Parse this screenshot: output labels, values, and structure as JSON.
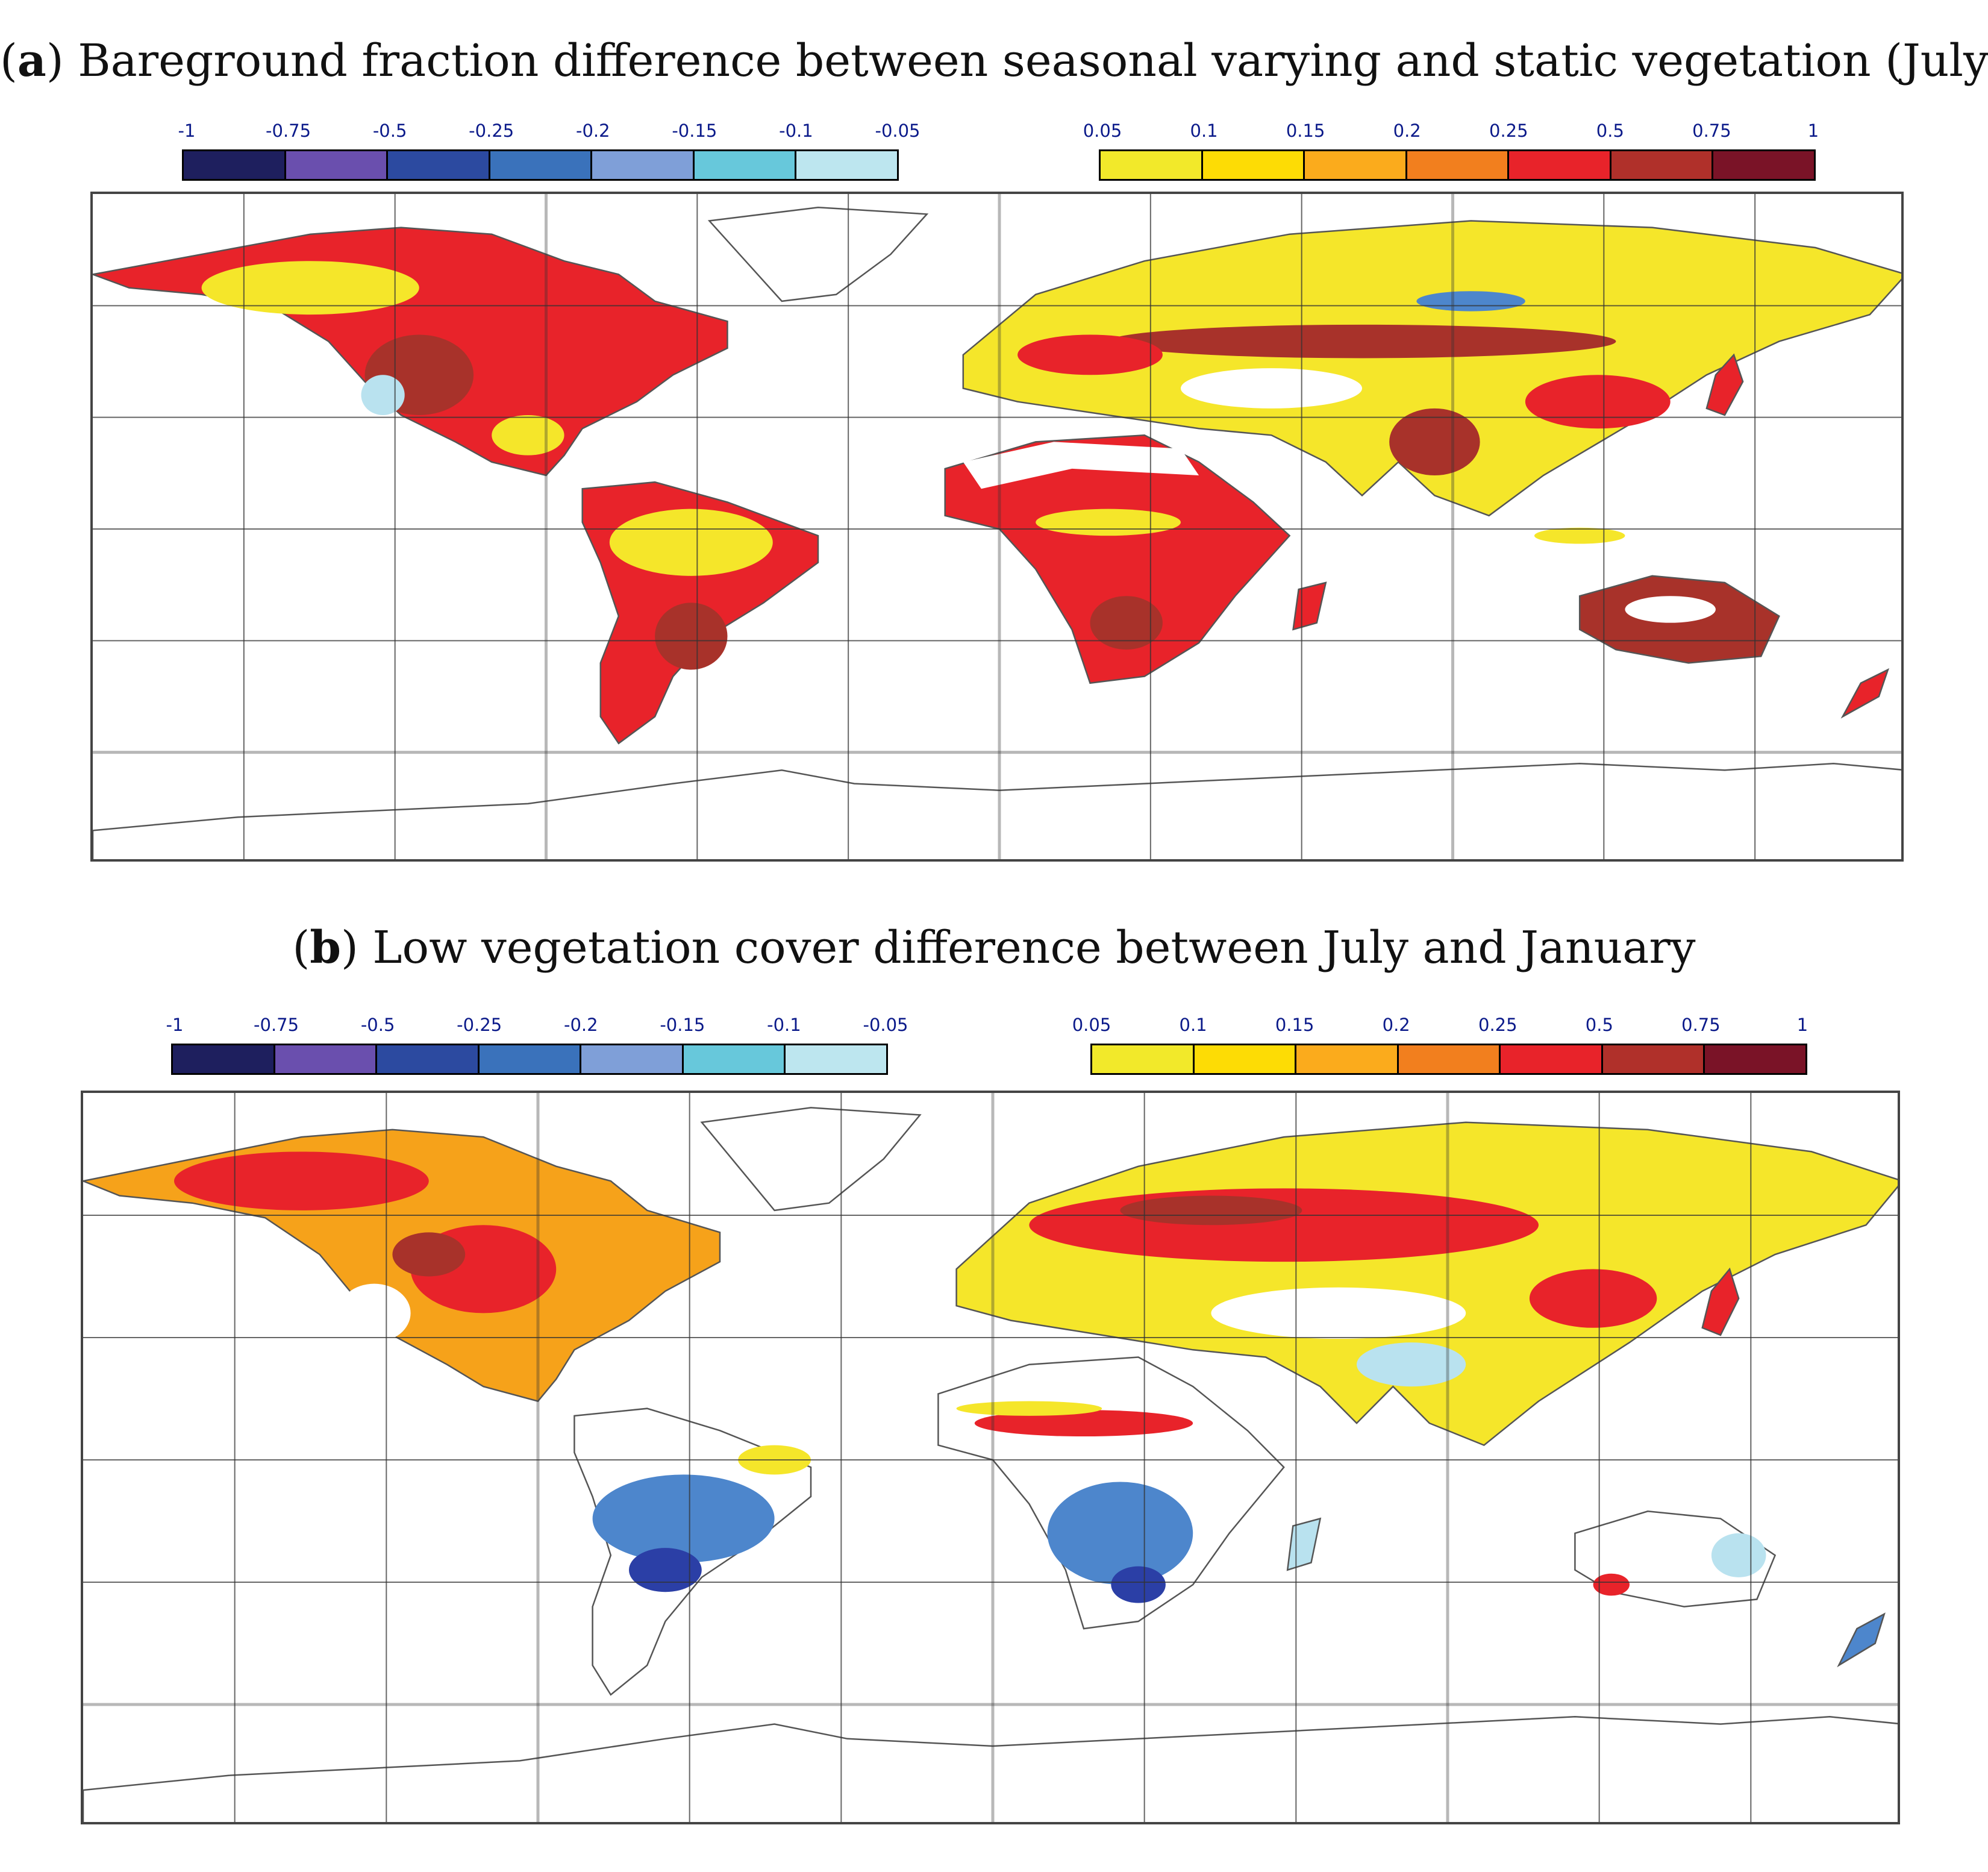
{
  "colorbar": {
    "negative": {
      "ticks": [
        "-1",
        "-0.75",
        "-0.5",
        "-0.25",
        "-0.2",
        "-0.15",
        "-0.1",
        "-0.05"
      ],
      "colors": [
        "#1e1f5e",
        "#6a4fae",
        "#2c4aa0",
        "#3a72bb",
        "#7f9fd8",
        "#67c8db",
        "#bde6ef"
      ]
    },
    "positive": {
      "ticks": [
        "0.05",
        "0.1",
        "0.15",
        "0.2",
        "0.25",
        "0.5",
        "0.75",
        "1"
      ],
      "colors": [
        "#f2e92a",
        "#fddc05",
        "#fbab1c",
        "#f27f1e",
        "#e8232a",
        "#b0302a",
        "#7a1327"
      ]
    }
  },
  "panels": [
    {
      "label": "a",
      "title": "Bareground fraction difference between seasonal varying and static vegetation (July)"
    },
    {
      "label": "b",
      "title": "Low vegetation cover difference between July and January"
    }
  ],
  "colors": {
    "yellow": "#f5e62a",
    "orange": "#f6a21a",
    "red": "#e8232a",
    "dark_red": "#a8322a",
    "light_blue": "#b9e2ef",
    "blue": "#4d86cc",
    "dark_blue": "#2b3fa6",
    "grid": "#333333",
    "coast": "#555555"
  }
}
